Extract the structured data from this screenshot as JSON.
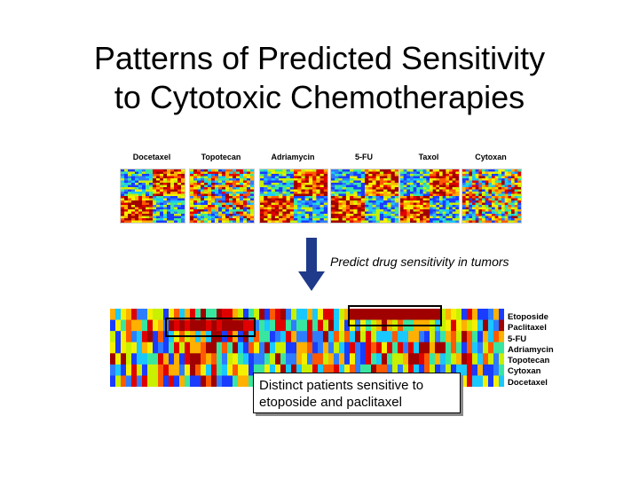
{
  "slide": {
    "title_line1": "Patterns of Predicted Sensitivity",
    "title_line2": "to Cytotoxic Chemotherapies"
  },
  "training_heatmaps": [
    {
      "label": "Docetaxel"
    },
    {
      "label": "Topotecan"
    },
    {
      "label": "Adriamycin"
    },
    {
      "label": "5-FU"
    },
    {
      "label": "Taxol"
    },
    {
      "label": "Cytoxan"
    }
  ],
  "arrow_caption": "Predict drug sensitivity in tumors",
  "tumor_heatmap": {
    "row_labels": [
      "Etoposide",
      "Paclitaxel",
      "5-FU",
      "Adriamycin",
      "Topotecan",
      "Cytoxan",
      "Docetaxel"
    ]
  },
  "callout": {
    "line1": "Distinct patients sensitive to",
    "line2": "etoposide and paclitaxel"
  },
  "colors": {
    "arrow": "#1f3a8a",
    "heat_low": "#1a3cff",
    "heat_mid": "#f5f000",
    "heat_high": "#e00000"
  }
}
